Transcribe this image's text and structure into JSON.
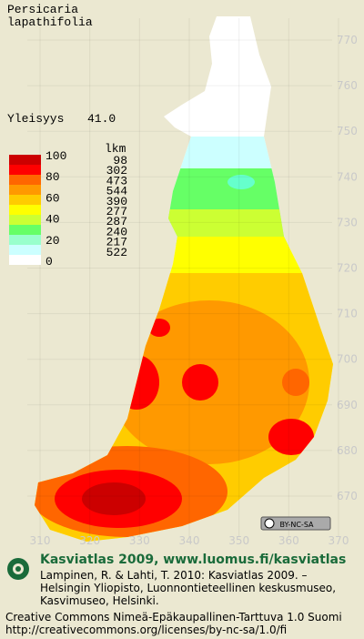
{
  "title": [
    "Persicaria",
    "lapathifolia"
  ],
  "frequency": {
    "label": "Yleisyys",
    "value": "41.0"
  },
  "legend": {
    "scale": [
      100,
      80,
      60,
      40,
      20,
      0
    ],
    "count_header": "lkm",
    "counts": [
      98,
      302,
      473,
      544,
      390,
      277,
      287,
      240,
      217,
      522
    ]
  },
  "grid": {
    "northing": [
      770,
      760,
      750,
      740,
      730,
      720,
      710,
      700,
      690,
      680,
      670
    ],
    "easting": [
      310,
      320,
      330,
      340,
      350,
      360,
      370
    ]
  },
  "license_badge": "BY-NC-SA",
  "footer": {
    "heading": "Kasviatlas 2009, www.luomus.fi/kasviatlas",
    "citation": [
      "Lampinen, R. & Lahti, T. 2010: Kasviatlas 2009. –",
      "Helsingin Yliopisto, Luonnontieteellinen keskusmuseo,",
      "Kasvimuseo, Helsinki."
    ],
    "license": [
      "Creative Commons Nimeä-Epäkaupallinen-Tarttuva 1.0 Suomi",
      "http://creativecommons.org/licenses/by-nc-sa/1.0/fi"
    ]
  }
}
